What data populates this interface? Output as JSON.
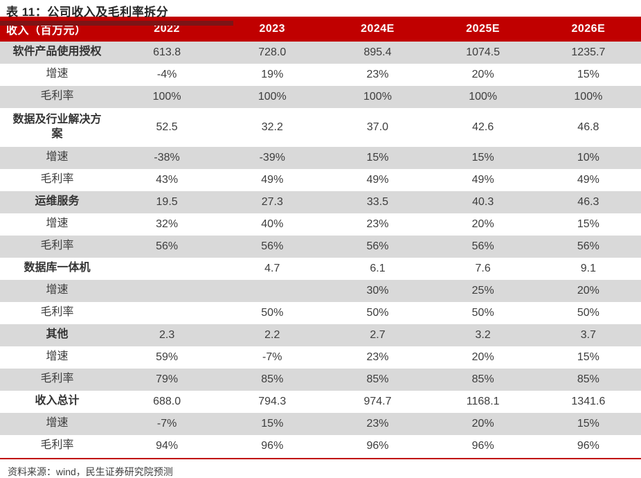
{
  "title": "表 11：公司收入及毛利率拆分",
  "source_note": "资料来源：wind，民生证券研究院预测",
  "colors": {
    "header_bg": "#C00000",
    "title_rule": "#7C1416",
    "row_alt": "#D9D9D9",
    "bottom_rule": "#C00000"
  },
  "table": {
    "columns": [
      "收入（百万元）",
      "2022",
      "2023",
      "2024E",
      "2025E",
      "2026E"
    ],
    "rows": [
      {
        "label": "软件产品使用授权",
        "bold": true,
        "values": [
          "613.8",
          "728.0",
          "895.4",
          "1074.5",
          "1235.7"
        ]
      },
      {
        "label": "增速",
        "bold": false,
        "values": [
          "-4%",
          "19%",
          "23%",
          "20%",
          "15%"
        ]
      },
      {
        "label": "毛利率",
        "bold": false,
        "values": [
          "100%",
          "100%",
          "100%",
          "100%",
          "100%"
        ]
      },
      {
        "label": "数据及行业解决方案",
        "bold": true,
        "values": [
          "52.5",
          "32.2",
          "37.0",
          "42.6",
          "46.8"
        ]
      },
      {
        "label": "增速",
        "bold": false,
        "values": [
          "-38%",
          "-39%",
          "15%",
          "15%",
          "10%"
        ]
      },
      {
        "label": "毛利率",
        "bold": false,
        "values": [
          "43%",
          "49%",
          "49%",
          "49%",
          "49%"
        ]
      },
      {
        "label": "运维服务",
        "bold": true,
        "values": [
          "19.5",
          "27.3",
          "33.5",
          "40.3",
          "46.3"
        ]
      },
      {
        "label": "增速",
        "bold": false,
        "values": [
          "32%",
          "40%",
          "23%",
          "20%",
          "15%"
        ]
      },
      {
        "label": "毛利率",
        "bold": false,
        "values": [
          "56%",
          "56%",
          "56%",
          "56%",
          "56%"
        ]
      },
      {
        "label": "数据库一体机",
        "bold": true,
        "values": [
          "",
          "4.7",
          "6.1",
          "7.6",
          "9.1"
        ]
      },
      {
        "label": "增速",
        "bold": false,
        "values": [
          "",
          "",
          "30%",
          "25%",
          "20%"
        ]
      },
      {
        "label": "毛利率",
        "bold": false,
        "values": [
          "",
          "50%",
          "50%",
          "50%",
          "50%"
        ]
      },
      {
        "label": "其他",
        "bold": true,
        "values": [
          "2.3",
          "2.2",
          "2.7",
          "3.2",
          "3.7"
        ]
      },
      {
        "label": "增速",
        "bold": false,
        "values": [
          "59%",
          "-7%",
          "23%",
          "20%",
          "15%"
        ]
      },
      {
        "label": "毛利率",
        "bold": false,
        "values": [
          "79%",
          "85%",
          "85%",
          "85%",
          "85%"
        ]
      },
      {
        "label": "收入总计",
        "bold": true,
        "values": [
          "688.0",
          "794.3",
          "974.7",
          "1168.1",
          "1341.6"
        ]
      },
      {
        "label": "增速",
        "bold": false,
        "values": [
          "-7%",
          "15%",
          "23%",
          "20%",
          "15%"
        ]
      },
      {
        "label": "毛利率",
        "bold": false,
        "values": [
          "94%",
          "96%",
          "96%",
          "96%",
          "96%"
        ]
      }
    ]
  }
}
